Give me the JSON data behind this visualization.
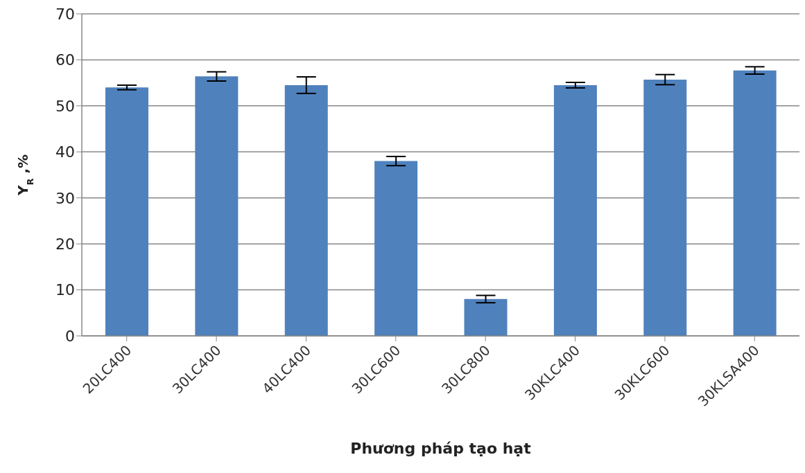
{
  "chart_data": {
    "type": "bar",
    "xlabel": "Phương pháp tạo hạt",
    "ylabel": "Y$_{R}$ ,%",
    "categories": [
      "20LC400",
      "30LC400",
      "40LC400",
      "30LC600",
      "30LC800",
      "30KLC400",
      "30KLC600",
      "30KLSA400"
    ],
    "values": [
      54.0,
      56.4,
      54.5,
      38.0,
      8.0,
      54.5,
      55.7,
      57.7
    ],
    "errors": [
      0.5,
      1.0,
      1.8,
      1.0,
      0.8,
      0.6,
      1.1,
      0.8
    ],
    "color": "#4f81bd",
    "ylim": [
      0,
      70
    ],
    "yticks": [
      0,
      10,
      20,
      30,
      40,
      50,
      60,
      70
    ],
    "grid": "y"
  }
}
